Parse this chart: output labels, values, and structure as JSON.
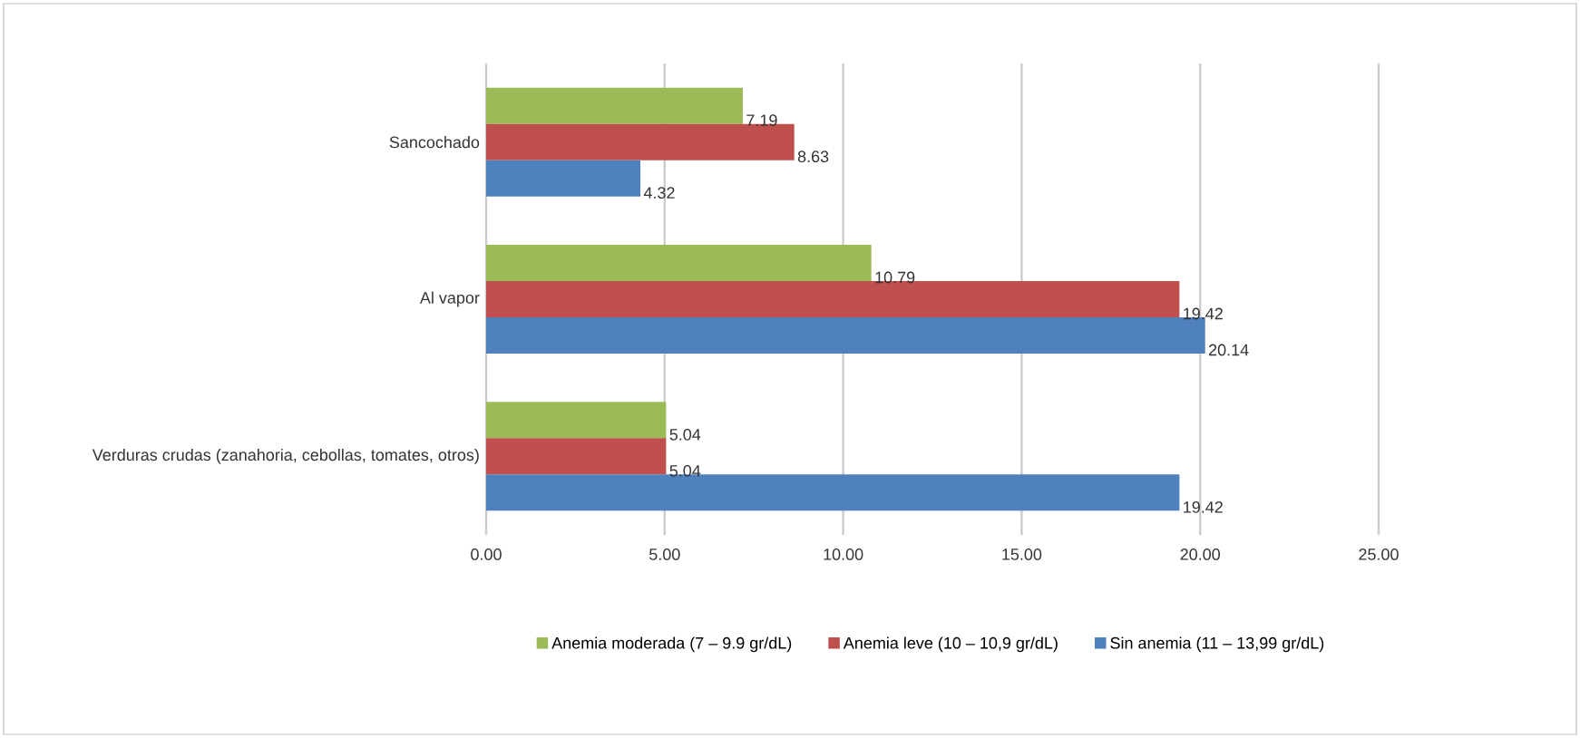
{
  "chart_data": {
    "type": "bar",
    "orientation": "horizontal",
    "categories": [
      "Sancochado",
      "Al vapor",
      "Verduras crudas (zanahoria, cebollas, tomates, otros)"
    ],
    "series": [
      {
        "name": "Anemia moderada (7 – 9.9 gr/dL)",
        "color": "#9bbb59",
        "values": [
          7.19,
          10.79,
          5.04
        ]
      },
      {
        "name": "Anemia leve (10 – 10,9 gr/dL)",
        "color": "#c0504d",
        "values": [
          8.63,
          19.42,
          5.04
        ]
      },
      {
        "name": "Sin anemia (11 – 13,99 gr/dL)",
        "color": "#4f81bd",
        "values": [
          4.32,
          20.14,
          19.42
        ]
      }
    ],
    "xlim": [
      0,
      25
    ],
    "xticks": [
      {
        "value": 0,
        "label": "0.00"
      },
      {
        "value": 5,
        "label": "5.00"
      },
      {
        "value": 10,
        "label": "10.00"
      },
      {
        "value": 15,
        "label": "15.00"
      },
      {
        "value": 20,
        "label": "20.00"
      },
      {
        "value": 25,
        "label": "25.00"
      }
    ],
    "grid": "x",
    "legend": "bottom",
    "data_labels": true
  }
}
